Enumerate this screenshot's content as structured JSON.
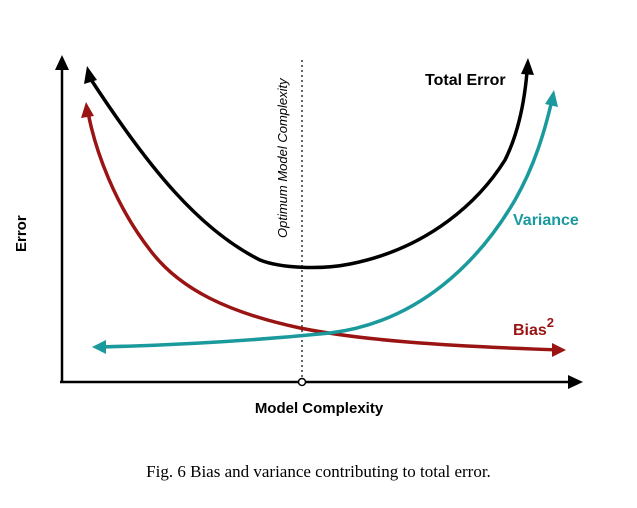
{
  "figure": {
    "y_axis_label": "Error",
    "x_axis_label": "Model Complexity",
    "optimum_label": "Optimum Model Complexity",
    "caption": "Fig. 6 Bias and variance contributing to total error."
  },
  "curves": {
    "total_error": {
      "label": "Total Error",
      "color": "#000000"
    },
    "variance": {
      "label": "Variance",
      "color": "#1a9a9c"
    },
    "bias": {
      "label_base": "Bias",
      "label_superscript": "2",
      "color": "#9b1414"
    }
  },
  "colors": {
    "axis": "#000000",
    "optimum_line": "#333333"
  }
}
